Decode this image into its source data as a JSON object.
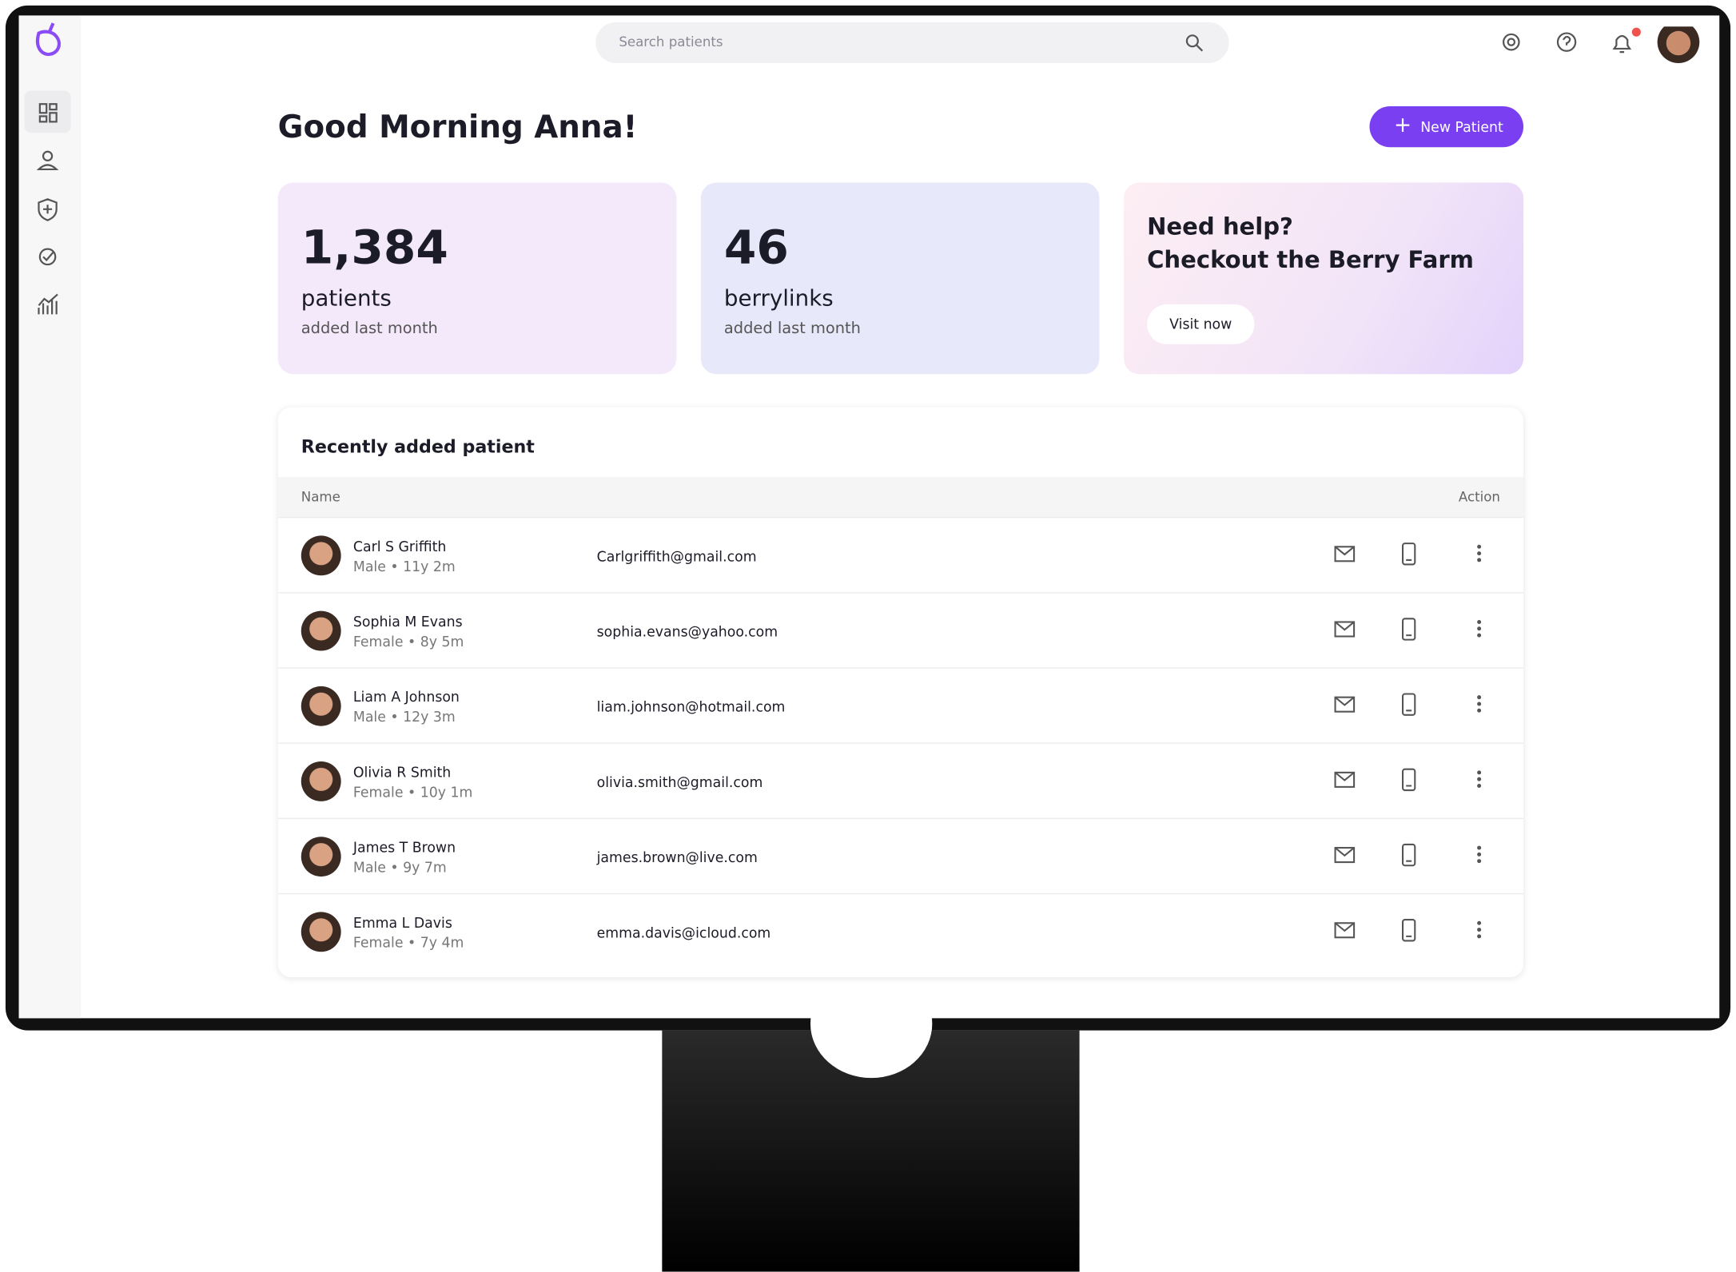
{
  "header": {
    "search_placeholder": "Search patients"
  },
  "greeting": "Good Morning Anna!",
  "new_patient_button": "New Patient",
  "stats": [
    {
      "value": "1,384",
      "label": "patients",
      "sublabel": "added last month"
    },
    {
      "value": "46",
      "label": "berrylinks",
      "sublabel": "added last month"
    }
  ],
  "help_card": {
    "line1": "Need help?",
    "line2": "Checkout the Berry Farm",
    "button": "Visit now"
  },
  "table": {
    "title": "Recently added patient",
    "headers": [
      "Name",
      "Action"
    ],
    "rows": [
      {
        "name": "Carl S Griffith",
        "details": "Male • 11y 2m",
        "email": "Carlgriffith@gmail.com"
      },
      {
        "name": "Sophia M Evans",
        "details": "Female • 8y 5m",
        "email": "sophia.evans@yahoo.com"
      },
      {
        "name": "Liam A Johnson",
        "details": "Male • 12y 3m",
        "email": "liam.johnson@hotmail.com"
      },
      {
        "name": "Olivia R Smith",
        "details": "Female • 10y 1m",
        "email": "olivia.smith@gmail.com"
      },
      {
        "name": "James T Brown",
        "details": "Male • 9y 7m",
        "email": "james.brown@live.com"
      },
      {
        "name": "Emma L Davis",
        "details": "Female • 7y 4m",
        "email": "emma.davis@icloud.com"
      }
    ]
  }
}
